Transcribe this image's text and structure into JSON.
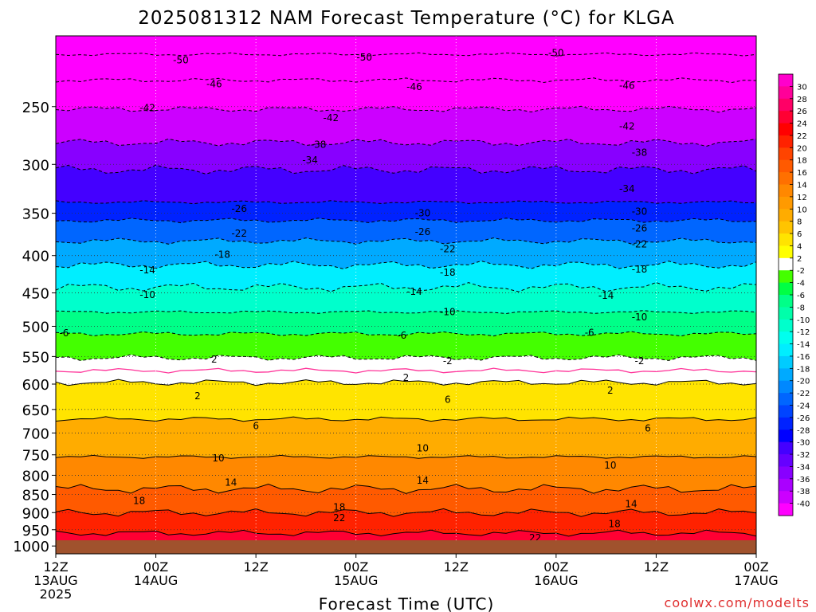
{
  "chart_data": {
    "type": "heatmap",
    "title": "2025081312 NAM Forecast Temperature (°C) for KLGA",
    "xlabel": "Forecast Time (UTC)",
    "ylabel": "",
    "credit": "coolwx.com/modelts",
    "x_ticks": [
      {
        "hours": 0,
        "lines": [
          "12Z",
          "13AUG",
          "2025"
        ]
      },
      {
        "hours": 12,
        "lines": [
          "00Z",
          "14AUG"
        ]
      },
      {
        "hours": 24,
        "lines": [
          "12Z"
        ]
      },
      {
        "hours": 36,
        "lines": [
          "00Z",
          "15AUG"
        ]
      },
      {
        "hours": 48,
        "lines": [
          "12Z"
        ]
      },
      {
        "hours": 60,
        "lines": [
          "00Z",
          "16AUG"
        ]
      },
      {
        "hours": 72,
        "lines": [
          "12Z"
        ]
      },
      {
        "hours": 84,
        "lines": [
          "00Z",
          "17AUG"
        ]
      }
    ],
    "xlim": [
      0,
      84
    ],
    "y_ticks": [
      250,
      300,
      350,
      400,
      450,
      500,
      550,
      600,
      650,
      700,
      750,
      800,
      850,
      900,
      950,
      1000
    ],
    "ylim": [
      200,
      1025
    ],
    "y_scale": "log-pressure",
    "grid": true,
    "colorbar": {
      "labels": [
        "30",
        "28",
        "26",
        "24",
        "22",
        "20",
        "18",
        "16",
        "14",
        "12",
        "10",
        "8",
        "6",
        "4",
        "2",
        "-2",
        "-4",
        "-6",
        "-8",
        "-10",
        "-12",
        "-14",
        "-16",
        "-18",
        "-20",
        "-22",
        "-24",
        "-26",
        "-28",
        "-30",
        "-32",
        "-34",
        "-36",
        "-38",
        "-40"
      ],
      "colors": [
        "#ff00cc",
        "#ff0099",
        "#ff0066",
        "#ff0033",
        "#ff0000",
        "#ff2200",
        "#ff4400",
        "#ff5a00",
        "#ff7000",
        "#ff8800",
        "#ff9a00",
        "#ffac00",
        "#ffc400",
        "#ffe400",
        "#ffff00",
        "#ffffff",
        "#44ff00",
        "#00ff44",
        "#00ff88",
        "#00ffaa",
        "#00ffcc",
        "#00ffee",
        "#00eeff",
        "#00ccff",
        "#00aaff",
        "#0088ff",
        "#0066ff",
        "#0044ff",
        "#0022ff",
        "#0000ff",
        "#4400ff",
        "#6600ff",
        "#8800ff",
        "#aa00ff",
        "#cc00ff",
        "#ff00ff"
      ]
    },
    "isotherm_profile": [
      {
        "temp": -50,
        "pressure_hpa": 212
      },
      {
        "temp": -46,
        "pressure_hpa": 230
      },
      {
        "temp": -42,
        "pressure_hpa": 252
      },
      {
        "temp": -38,
        "pressure_hpa": 280
      },
      {
        "temp": -34,
        "pressure_hpa": 305
      },
      {
        "temp": -30,
        "pressure_hpa": 338
      },
      {
        "temp": -26,
        "pressure_hpa": 358
      },
      {
        "temp": -22,
        "pressure_hpa": 382
      },
      {
        "temp": -18,
        "pressure_hpa": 412
      },
      {
        "temp": -14,
        "pressure_hpa": 442
      },
      {
        "temp": -10,
        "pressure_hpa": 478
      },
      {
        "temp": -6,
        "pressure_hpa": 512
      },
      {
        "temp": -2,
        "pressure_hpa": 552
      },
      {
        "temp": 2,
        "pressure_hpa": 597
      },
      {
        "temp": 6,
        "pressure_hpa": 670
      },
      {
        "temp": 10,
        "pressure_hpa": 755
      },
      {
        "temp": 14,
        "pressure_hpa": 835
      },
      {
        "temp": 18,
        "pressure_hpa": 900
      },
      {
        "temp": 22,
        "pressure_hpa": 960
      },
      {
        "temp": 26,
        "pressure_hpa": 1010
      }
    ],
    "contour_labels": [
      {
        "text": "-50",
        "hours": 15,
        "p": 216
      },
      {
        "text": "-50",
        "hours": 37,
        "p": 214
      },
      {
        "text": "-50",
        "hours": 60,
        "p": 211
      },
      {
        "text": "-46",
        "hours": 19,
        "p": 233
      },
      {
        "text": "-46",
        "hours": 43,
        "p": 235
      },
      {
        "text": "-46",
        "hours": 68.5,
        "p": 234
      },
      {
        "text": "-42",
        "hours": 11,
        "p": 251
      },
      {
        "text": "-42",
        "hours": 33,
        "p": 259
      },
      {
        "text": "-42",
        "hours": 68.5,
        "p": 266
      },
      {
        "text": "-38",
        "hours": 31.5,
        "p": 282
      },
      {
        "text": "-38",
        "hours": 70,
        "p": 289
      },
      {
        "text": "-34",
        "hours": 30.5,
        "p": 296
      },
      {
        "text": "-34",
        "hours": 68.5,
        "p": 324
      },
      {
        "text": "-30",
        "hours": 44,
        "p": 350
      },
      {
        "text": "-30",
        "hours": 70,
        "p": 348
      },
      {
        "text": "-26",
        "hours": 22,
        "p": 345
      },
      {
        "text": "-26",
        "hours": 44,
        "p": 371
      },
      {
        "text": "-26",
        "hours": 70,
        "p": 367
      },
      {
        "text": "-22",
        "hours": 22,
        "p": 373
      },
      {
        "text": "-22",
        "hours": 47,
        "p": 392
      },
      {
        "text": "-22",
        "hours": 70,
        "p": 386
      },
      {
        "text": "-18",
        "hours": 20,
        "p": 399
      },
      {
        "text": "-18",
        "hours": 47,
        "p": 422
      },
      {
        "text": "-18",
        "hours": 70,
        "p": 418
      },
      {
        "text": "-14",
        "hours": 11,
        "p": 419
      },
      {
        "text": "-14",
        "hours": 43,
        "p": 448
      },
      {
        "text": "-14",
        "hours": 66,
        "p": 454
      },
      {
        "text": "-10",
        "hours": 11,
        "p": 453
      },
      {
        "text": "-10",
        "hours": 47,
        "p": 478
      },
      {
        "text": "-10",
        "hours": 70,
        "p": 486
      },
      {
        "text": "-6",
        "hours": 1,
        "p": 511
      },
      {
        "text": "-6",
        "hours": 41.5,
        "p": 515
      },
      {
        "text": "-6",
        "hours": 64,
        "p": 510
      },
      {
        "text": "2",
        "hours": 19,
        "p": 555
      },
      {
        "text": "-2",
        "hours": 47,
        "p": 558
      },
      {
        "text": "-2",
        "hours": 70,
        "p": 558
      },
      {
        "text": "2",
        "hours": 42,
        "p": 588
      },
      {
        "text": "2",
        "hours": 17,
        "p": 623
      },
      {
        "text": "2",
        "hours": 66.5,
        "p": 612
      },
      {
        "text": "6",
        "hours": 47,
        "p": 630
      },
      {
        "text": "6",
        "hours": 24,
        "p": 685
      },
      {
        "text": "6",
        "hours": 71,
        "p": 690
      },
      {
        "text": "10",
        "hours": 44,
        "p": 735
      },
      {
        "text": "10",
        "hours": 19.5,
        "p": 758
      },
      {
        "text": "10",
        "hours": 66.5,
        "p": 775
      },
      {
        "text": "14",
        "hours": 21,
        "p": 818
      },
      {
        "text": "14",
        "hours": 44,
        "p": 813
      },
      {
        "text": "14",
        "hours": 69,
        "p": 876
      },
      {
        "text": "18",
        "hours": 10,
        "p": 867
      },
      {
        "text": "18",
        "hours": 34,
        "p": 885
      },
      {
        "text": "18",
        "hours": 67,
        "p": 933
      },
      {
        "text": "22",
        "hours": 34,
        "p": 915
      },
      {
        "text": "22",
        "hours": 57.5,
        "p": 975
      },
      {
        "text": "22",
        "hours": 14,
        "p": 1008
      }
    ]
  }
}
